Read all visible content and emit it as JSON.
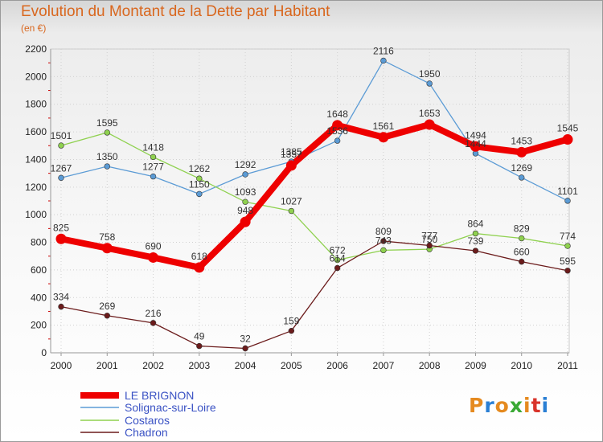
{
  "header": {
    "title": "Evolution du Montant de la Dette par Habitant",
    "unit": "(en €)"
  },
  "logo": {
    "text": "Proxiti",
    "colors": [
      "#e58a1f",
      "#2a7fd4",
      "#e58a1f",
      "#3aa935",
      "#e58a1f",
      "#d9342b",
      "#2a7fd4"
    ]
  },
  "chart_data": {
    "type": "line",
    "x": [
      "2000",
      "2001",
      "2002",
      "2003",
      "2004",
      "2005",
      "2006",
      "2007",
      "2008",
      "2009",
      "2010",
      "2011"
    ],
    "ylim": [
      0,
      2200
    ],
    "yticks": [
      0,
      200,
      400,
      600,
      800,
      1000,
      1200,
      1400,
      1600,
      1800,
      2000,
      2200
    ],
    "grid": true,
    "legend_position": "bottom-left",
    "series": [
      {
        "name": "LE BRIGNON",
        "color": "#ee0000",
        "emphasis": true,
        "values": [
          825,
          758,
          690,
          618,
          948,
          1357,
          1648,
          1561,
          1653,
          1494,
          1453,
          1545
        ]
      },
      {
        "name": "Solignac-sur-Loire",
        "color": "#5b9bd5",
        "emphasis": false,
        "values": [
          1267,
          1350,
          1277,
          1150,
          1292,
          1385,
          1536,
          2116,
          1950,
          1444,
          1269,
          1101
        ]
      },
      {
        "name": "Costaros",
        "color": "#8fd14f",
        "emphasis": false,
        "values": [
          1501,
          1595,
          1418,
          1262,
          1093,
          1027,
          672,
          743,
          750,
          864,
          829,
          774
        ]
      },
      {
        "name": "Chadron",
        "color": "#6b1b1b",
        "emphasis": false,
        "values": [
          334,
          269,
          216,
          49,
          32,
          159,
          614,
          809,
          777,
          739,
          660,
          595
        ]
      }
    ]
  }
}
